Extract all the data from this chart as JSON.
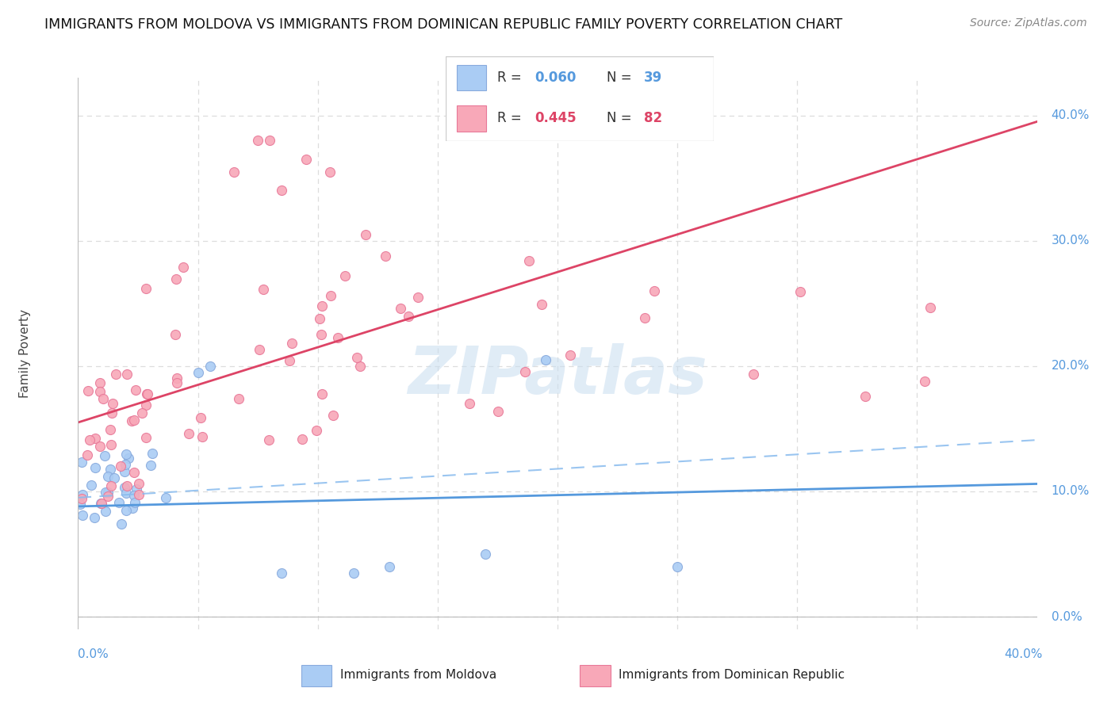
{
  "title": "IMMIGRANTS FROM MOLDOVA VS IMMIGRANTS FROM DOMINICAN REPUBLIC FAMILY POVERTY CORRELATION CHART",
  "source": "Source: ZipAtlas.com",
  "ylabel": "Family Poverty",
  "xlim": [
    0.0,
    0.4
  ],
  "ylim": [
    -0.01,
    0.43
  ],
  "plot_ylim": [
    0.0,
    0.4
  ],
  "moldova_color": "#aaccf4",
  "moldova_edge": "#88aadd",
  "dominican_color": "#f8a8b8",
  "dominican_edge": "#e87898",
  "moldova_R": 0.06,
  "moldova_N": 39,
  "dominican_R": 0.445,
  "dominican_N": 82,
  "moldova_line_color": "#5599dd",
  "dominican_line_color": "#dd4466",
  "dashed_line_color": "#88bbee",
  "watermark": "ZIPatlas",
  "background_color": "#ffffff",
  "grid_color": "#dddddd",
  "legend_R1": "0.060",
  "legend_N1": "39",
  "legend_R2": "0.445",
  "legend_N2": "82",
  "legend_color1": "#5599dd",
  "legend_color2": "#dd4466",
  "ytick_vals": [
    0.0,
    0.1,
    0.2,
    0.3,
    0.4
  ],
  "ytick_labels": [
    "0.0%",
    "10.0%",
    "20.0%",
    "30.0%",
    "40.0%"
  ],
  "moldova_line_intercept": 0.088,
  "moldova_line_slope": 0.045,
  "dominican_line_intercept": 0.155,
  "dominican_line_slope": 0.6,
  "dashed_line_intercept": 0.095,
  "dashed_line_slope": 0.115
}
